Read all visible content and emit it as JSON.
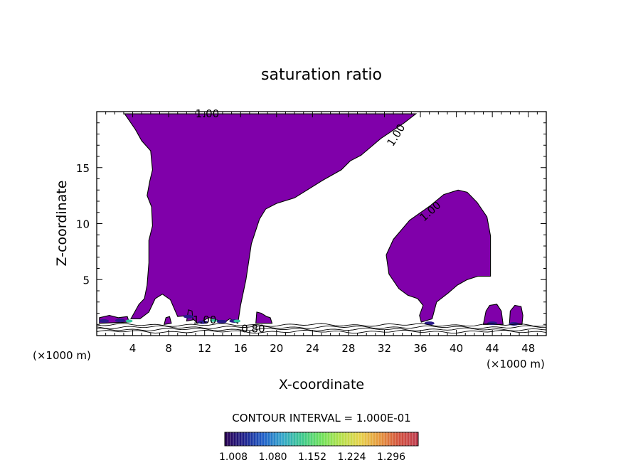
{
  "chart_data": {
    "type": "contour",
    "title": "saturation ratio",
    "xlabel": "X-coordinate",
    "ylabel": "Z-coordinate",
    "x_unit_left": "(×1000 m)",
    "x_unit_right": "(×1000 m)",
    "xlim": [
      0,
      50
    ],
    "ylim": [
      0,
      20
    ],
    "x_ticks": [
      4,
      8,
      12,
      16,
      20,
      24,
      28,
      32,
      36,
      40,
      44,
      48
    ],
    "x_tick_labels": [
      "4",
      "8",
      "12",
      "16",
      "20",
      "24",
      "28",
      "32",
      "36",
      "40",
      "44",
      "48"
    ],
    "y_ticks": [
      5,
      10,
      15
    ],
    "y_tick_labels": [
      "5",
      "10",
      "15"
    ],
    "contour_labels": [
      {
        "text": "1.00",
        "x": 12.3,
        "z": 19.8,
        "angle": 0
      },
      {
        "text": "1.00",
        "x": 33.3,
        "z": 17.9,
        "angle": -58
      },
      {
        "text": "1.00",
        "x": 37.1,
        "z": 11.1,
        "angle": -42
      },
      {
        "text": "1.00",
        "x": 12.0,
        "z": 1.4,
        "angle": 0
      },
      {
        "text": "0.80",
        "x": 17.4,
        "z": 0.6,
        "angle": 0
      }
    ],
    "regions": [
      {
        "name": "main plume",
        "level": "1.008",
        "points": [
          [
            3.1,
            19.8
          ],
          [
            35.5,
            19.8
          ],
          [
            34.2,
            19.0
          ],
          [
            31.6,
            17.6
          ],
          [
            29.4,
            16.1
          ],
          [
            28.2,
            15.6
          ],
          [
            27.2,
            14.8
          ],
          [
            25.2,
            13.9
          ],
          [
            23.8,
            13.2
          ],
          [
            22.0,
            12.3
          ],
          [
            20.0,
            11.8
          ],
          [
            18.8,
            11.3
          ],
          [
            18.1,
            10.4
          ],
          [
            17.2,
            8.2
          ],
          [
            16.6,
            5.0
          ],
          [
            16.0,
            2.7
          ],
          [
            15.7,
            1.1
          ],
          [
            14.8,
            1.5
          ],
          [
            14.2,
            1.2
          ],
          [
            12.5,
            1.6
          ],
          [
            11.2,
            1.1
          ],
          [
            10.3,
            1.8
          ],
          [
            9.0,
            1.7
          ],
          [
            8.2,
            3.2
          ],
          [
            7.3,
            3.7
          ],
          [
            6.5,
            3.3
          ],
          [
            5.8,
            2.1
          ],
          [
            4.8,
            1.5
          ],
          [
            3.8,
            1.5
          ],
          [
            4.7,
            2.8
          ],
          [
            5.3,
            3.3
          ],
          [
            5.6,
            4.5
          ],
          [
            5.8,
            6.5
          ],
          [
            5.8,
            8.5
          ],
          [
            6.2,
            9.8
          ],
          [
            6.1,
            11.5
          ],
          [
            5.6,
            12.5
          ],
          [
            5.9,
            13.8
          ],
          [
            6.2,
            14.8
          ],
          [
            6.0,
            16.5
          ],
          [
            5.0,
            17.4
          ],
          [
            4.3,
            18.4
          ]
        ]
      },
      {
        "name": "right cell",
        "level": "1.008",
        "points": [
          [
            36.1,
            1.2
          ],
          [
            35.9,
            1.8
          ],
          [
            36.3,
            2.7
          ],
          [
            35.7,
            3.3
          ],
          [
            34.6,
            3.6
          ],
          [
            33.6,
            4.2
          ],
          [
            32.5,
            5.5
          ],
          [
            32.2,
            7.2
          ],
          [
            33.0,
            8.6
          ],
          [
            34.8,
            10.3
          ],
          [
            37.1,
            11.6
          ],
          [
            38.6,
            12.6
          ],
          [
            40.2,
            13.0
          ],
          [
            41.2,
            12.8
          ],
          [
            42.3,
            11.9
          ],
          [
            43.4,
            10.6
          ],
          [
            43.8,
            8.9
          ],
          [
            43.8,
            5.3
          ],
          [
            42.4,
            5.3
          ],
          [
            41.2,
            5.0
          ],
          [
            40.1,
            4.5
          ],
          [
            39.1,
            3.8
          ],
          [
            37.8,
            3.0
          ],
          [
            37.3,
            1.5
          ]
        ]
      },
      {
        "name": "bump 1",
        "level": "1.008",
        "points": [
          [
            43.0,
            1.0
          ],
          [
            43.3,
            2.2
          ],
          [
            43.7,
            2.7
          ],
          [
            44.5,
            2.8
          ],
          [
            45.0,
            2.2
          ],
          [
            45.2,
            1.0
          ]
        ]
      },
      {
        "name": "bump 2",
        "level": "1.008",
        "points": [
          [
            45.9,
            1.0
          ],
          [
            46.0,
            2.2
          ],
          [
            46.5,
            2.7
          ],
          [
            47.2,
            2.6
          ],
          [
            47.4,
            1.8
          ],
          [
            47.3,
            1.0
          ]
        ]
      },
      {
        "name": "left fragment",
        "level": "1.008",
        "points": [
          [
            0.3,
            1.1
          ],
          [
            0.3,
            1.6
          ],
          [
            1.4,
            1.8
          ],
          [
            2.4,
            1.6
          ],
          [
            3.4,
            1.7
          ],
          [
            3.6,
            1.2
          ]
        ]
      },
      {
        "name": "fragment 18",
        "level": "1.008",
        "points": [
          [
            17.7,
            1.1
          ],
          [
            17.8,
            2.1
          ],
          [
            18.3,
            2.0
          ],
          [
            18.9,
            1.7
          ],
          [
            19.3,
            1.6
          ],
          [
            19.5,
            1.1
          ]
        ]
      },
      {
        "name": "fragment 10",
        "level": "1.008",
        "points": [
          [
            10.0,
            1.3
          ],
          [
            10.2,
            2.3
          ],
          [
            10.6,
            2.2
          ],
          [
            10.7,
            1.4
          ]
        ]
      },
      {
        "name": "fragment 8",
        "level": "1.008",
        "points": [
          [
            7.5,
            1.0
          ],
          [
            7.7,
            1.6
          ],
          [
            8.1,
            1.7
          ],
          [
            8.3,
            1.1
          ]
        ]
      }
    ],
    "colorbar": {
      "label": "CONTOUR INTERVAL = 1.000E-01",
      "ticks": [
        "1.008",
        "1.080",
        "1.152",
        "1.224",
        "1.296"
      ],
      "colors": [
        "#2a0052",
        "#1d1f8a",
        "#1e5fc8",
        "#32a6c8",
        "#3cc88c",
        "#6ee05a",
        "#b4e04a",
        "#e6d24a",
        "#e6963c",
        "#d2503c",
        "#be3c50"
      ]
    },
    "colors": {
      "fill": "#8000aa",
      "line": "#000000",
      "low_level": "#2a1a8a",
      "mid_level": "#32c8a0"
    },
    "grid": false
  }
}
